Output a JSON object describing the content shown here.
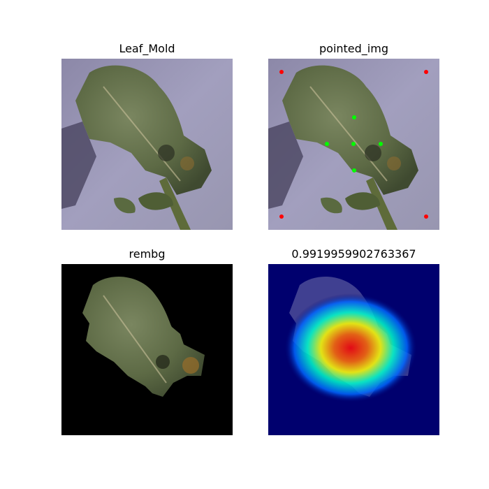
{
  "figure": {
    "panels": [
      {
        "title": "Leaf_Mold",
        "image": "leaf-photo",
        "background": "#9b98b2",
        "mark_colors": []
      },
      {
        "title": "pointed_img",
        "image": "leaf-photo-with-points",
        "background": "#9b98b2",
        "mark_colors": [
          "#ff0000",
          "#00ff00"
        ]
      },
      {
        "title": "rembg",
        "image": "leaf-background-removed",
        "background": "#000000",
        "mark_colors": []
      },
      {
        "title": "0.9919959902763367",
        "image": "heatmap-overlay",
        "background": "#00006e",
        "mark_colors": [
          "#00007f",
          "#0066ff",
          "#00ffcc",
          "#ffff00",
          "#ff0000"
        ]
      }
    ]
  }
}
